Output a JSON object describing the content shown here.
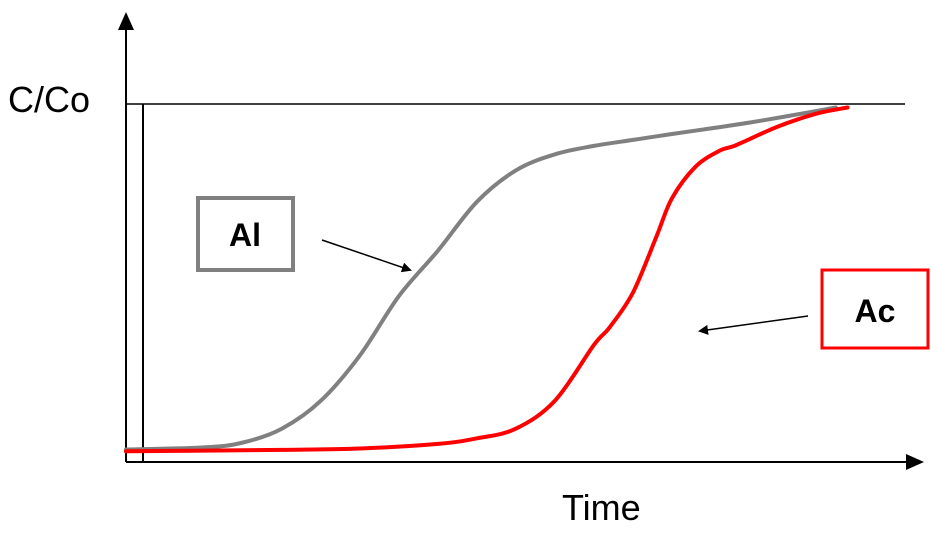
{
  "chart_data": {
    "type": "line",
    "title": "",
    "xlabel": "Time",
    "ylabel": "C/Co",
    "xlim": [
      0,
      10
    ],
    "ylim": [
      0,
      1
    ],
    "grid": false,
    "reference_line": {
      "y": 1
    },
    "series": [
      {
        "name": "Al",
        "color": "#808080",
        "x": [
          0,
          1,
          1.5,
          2,
          2.5,
          3,
          3.5,
          4,
          4.5,
          5,
          5.5,
          6,
          6.5,
          7,
          7.5,
          8,
          8.5,
          9.1
        ],
        "y": [
          0.01,
          0.016,
          0.03,
          0.07,
          0.15,
          0.28,
          0.45,
          0.58,
          0.72,
          0.81,
          0.856,
          0.88,
          0.897,
          0.914,
          0.93,
          0.947,
          0.966,
          0.99
        ]
      },
      {
        "name": "Ac",
        "color": "#ff0000",
        "x": [
          0,
          1,
          2,
          3,
          4,
          4.5,
          5,
          5.5,
          6,
          6.2,
          6.5,
          6.8,
          7,
          7.3,
          7.6,
          7.8,
          8,
          8.3,
          8.6,
          8.9,
          9.25
        ],
        "y": [
          0.005,
          0.007,
          0.009,
          0.013,
          0.026,
          0.042,
          0.07,
          0.15,
          0.31,
          0.36,
          0.46,
          0.62,
          0.73,
          0.82,
          0.865,
          0.88,
          0.9,
          0.93,
          0.955,
          0.975,
          0.99
        ]
      }
    ],
    "annotations": [
      {
        "text": "Al",
        "series": "Al",
        "box_color": "#808080"
      },
      {
        "text": "Ac",
        "series": "Ac",
        "box_color": "#ff0000"
      }
    ]
  }
}
